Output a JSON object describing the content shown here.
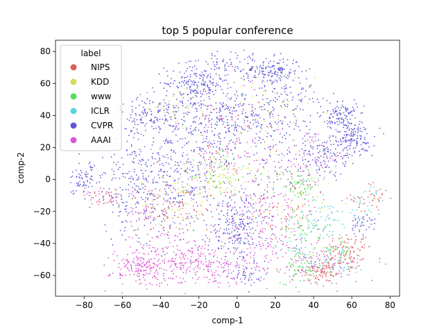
{
  "chart_data": {
    "type": "scatter",
    "title": "top 5 popular conference",
    "xlabel": "comp-1",
    "ylabel": "comp-2",
    "xlim": [
      -95,
      85
    ],
    "ylim": [
      -73,
      87
    ],
    "x_ticks": [
      -80,
      -60,
      -40,
      -20,
      0,
      20,
      40,
      60,
      80
    ],
    "y_ticks": [
      -60,
      -40,
      -20,
      0,
      20,
      40,
      60,
      80
    ],
    "grid": false,
    "legend": {
      "title": "label",
      "placement": "top-left"
    },
    "series": [
      {
        "name": "NIPS",
        "color": "#db5f57",
        "clusters": [
          {
            "cx": 58,
            "cy": -45,
            "sx": 6,
            "sy": 6,
            "n": 90
          },
          {
            "cx": 45,
            "cy": -58,
            "sx": 6,
            "sy": 4,
            "n": 70
          },
          {
            "cx": -30,
            "cy": -20,
            "sx": 10,
            "sy": 8,
            "n": 60
          },
          {
            "cx": 15,
            "cy": -20,
            "sx": 10,
            "sy": 10,
            "n": 50
          },
          {
            "cx": 70,
            "cy": -12,
            "sx": 5,
            "sy": 5,
            "n": 40
          },
          {
            "cx": 0,
            "cy": 20,
            "sx": 20,
            "sy": 20,
            "n": 80
          },
          {
            "cx": -70,
            "cy": -12,
            "sx": 6,
            "sy": 3,
            "n": 25
          }
        ]
      },
      {
        "name": "KDD",
        "color": "#d3db57",
        "clusters": [
          {
            "cx": -10,
            "cy": 0,
            "sx": 10,
            "sy": 6,
            "n": 110
          },
          {
            "cx": -35,
            "cy": -15,
            "sx": 8,
            "sy": 8,
            "n": 60
          },
          {
            "cx": -30,
            "cy": 45,
            "sx": 8,
            "sy": 6,
            "n": 40
          },
          {
            "cx": 35,
            "cy": -10,
            "sx": 10,
            "sy": 10,
            "n": 40
          },
          {
            "cx": 10,
            "cy": 40,
            "sx": 15,
            "sy": 15,
            "n": 60
          }
        ]
      },
      {
        "name": "www",
        "color": "#57db5f",
        "clusters": [
          {
            "cx": 35,
            "cy": -55,
            "sx": 6,
            "sy": 5,
            "n": 80
          },
          {
            "cx": 32,
            "cy": -3,
            "sx": 6,
            "sy": 5,
            "n": 70
          },
          {
            "cx": 35,
            "cy": -30,
            "sx": 6,
            "sy": 6,
            "n": 50
          },
          {
            "cx": -10,
            "cy": 5,
            "sx": 10,
            "sy": 8,
            "n": 40
          },
          {
            "cx": 50,
            "cy": -45,
            "sx": 6,
            "sy": 6,
            "n": 40
          }
        ]
      },
      {
        "name": "ICLR",
        "color": "#57d3db",
        "clusters": [
          {
            "cx": 45,
            "cy": -25,
            "sx": 8,
            "sy": 6,
            "n": 60
          },
          {
            "cx": 55,
            "cy": -52,
            "sx": 6,
            "sy": 5,
            "n": 40
          },
          {
            "cx": 68,
            "cy": -15,
            "sx": 5,
            "sy": 6,
            "n": 30
          },
          {
            "cx": 30,
            "cy": -40,
            "sx": 6,
            "sy": 5,
            "n": 25
          }
        ]
      },
      {
        "name": "CVPR",
        "color": "#5f57db",
        "clusters": [
          {
            "cx": -22,
            "cy": 60,
            "sx": 8,
            "sy": 6,
            "n": 180
          },
          {
            "cx": 18,
            "cy": 68,
            "sx": 8,
            "sy": 4,
            "n": 160
          },
          {
            "cx": 0,
            "cy": 40,
            "sx": 15,
            "sy": 10,
            "n": 260
          },
          {
            "cx": -45,
            "cy": 40,
            "sx": 8,
            "sy": 6,
            "n": 120
          },
          {
            "cx": 55,
            "cy": 40,
            "sx": 4,
            "sy": 5,
            "n": 110
          },
          {
            "cx": 60,
            "cy": 25,
            "sx": 6,
            "sy": 6,
            "n": 160
          },
          {
            "cx": 45,
            "cy": 15,
            "sx": 6,
            "sy": 6,
            "n": 90
          },
          {
            "cx": 0,
            "cy": -30,
            "sx": 8,
            "sy": 12,
            "n": 240
          },
          {
            "cx": -80,
            "cy": 0,
            "sx": 5,
            "sy": 5,
            "n": 70
          },
          {
            "cx": -55,
            "cy": 0,
            "sx": 10,
            "sy": 20,
            "n": 200
          },
          {
            "cx": -35,
            "cy": -5,
            "sx": 12,
            "sy": 15,
            "n": 200
          },
          {
            "cx": -20,
            "cy": 20,
            "sx": 12,
            "sy": 15,
            "n": 160
          },
          {
            "cx": 5,
            "cy": -60,
            "sx": 6,
            "sy": 3,
            "n": 40
          },
          {
            "cx": 20,
            "cy": 20,
            "sx": 12,
            "sy": 15,
            "n": 100
          },
          {
            "cx": 30,
            "cy": 50,
            "sx": 8,
            "sy": 6,
            "n": 60
          },
          {
            "cx": 65,
            "cy": -28,
            "sx": 4,
            "sy": 4,
            "n": 40
          },
          {
            "cx": -5,
            "cy": 72,
            "sx": 8,
            "sy": 5,
            "n": 60
          }
        ]
      },
      {
        "name": "AAAI",
        "color": "#db57d3",
        "clusters": [
          {
            "cx": -50,
            "cy": -55,
            "sx": 8,
            "sy": 6,
            "n": 180
          },
          {
            "cx": -25,
            "cy": -50,
            "sx": 10,
            "sy": 8,
            "n": 150
          },
          {
            "cx": 15,
            "cy": -45,
            "sx": 15,
            "sy": 10,
            "n": 150
          },
          {
            "cx": 45,
            "cy": -55,
            "sx": 10,
            "sy": 6,
            "n": 100
          },
          {
            "cx": -15,
            "cy": -55,
            "sx": 12,
            "sy": 6,
            "n": 100
          },
          {
            "cx": 40,
            "cy": 10,
            "sx": 10,
            "sy": 10,
            "n": 80
          },
          {
            "cx": -10,
            "cy": 25,
            "sx": 20,
            "sy": 20,
            "n": 140
          },
          {
            "cx": 20,
            "cy": -15,
            "sx": 15,
            "sy": 10,
            "n": 100
          },
          {
            "cx": -45,
            "cy": -25,
            "sx": 8,
            "sy": 10,
            "n": 80
          },
          {
            "cx": -70,
            "cy": -10,
            "sx": 6,
            "sy": 3,
            "n": 30
          }
        ]
      }
    ]
  }
}
